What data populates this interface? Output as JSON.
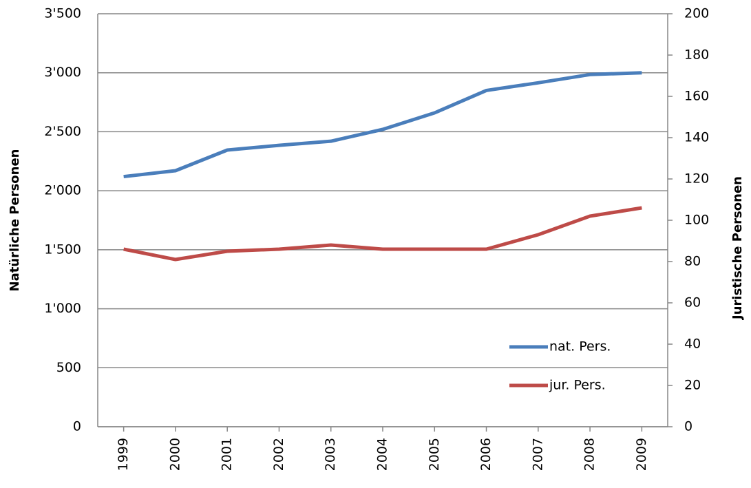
{
  "chart_data": {
    "type": "line",
    "categories": [
      "1999",
      "2000",
      "2001",
      "2002",
      "2003",
      "2004",
      "2005",
      "2006",
      "2007",
      "2008",
      "2009"
    ],
    "series": [
      {
        "name": "nat. Pers.",
        "color": "#4a7ebb",
        "values": [
          2120,
          2170,
          2345,
          2385,
          2420,
          2520,
          2660,
          2850,
          2915,
          2985,
          3000
        ]
      },
      {
        "name": "jur. Pers.",
        "color": "#be4b48",
        "axis": "y2",
        "values": [
          86,
          81,
          85,
          86,
          88,
          86,
          86,
          86,
          93,
          102,
          106
        ]
      }
    ],
    "ylabel": "Natürliche Personen",
    "y2label": "Juristische Personen",
    "ylim": [
      0,
      3500
    ],
    "yticks": [
      0,
      500,
      {
        "value": 1000,
        "label": "1'000"
      },
      {
        "value": 1500,
        "label": "1'500"
      },
      {
        "value": 2000,
        "label": "2'000"
      },
      {
        "value": 2500,
        "label": "2'500"
      },
      {
        "value": 3000,
        "label": "3'000"
      },
      {
        "value": 3500,
        "label": "3'500"
      }
    ],
    "y2lim": [
      0,
      200
    ],
    "y2ticks": [
      0,
      20,
      40,
      60,
      80,
      100,
      120,
      140,
      160,
      180,
      200
    ],
    "grid": true
  }
}
